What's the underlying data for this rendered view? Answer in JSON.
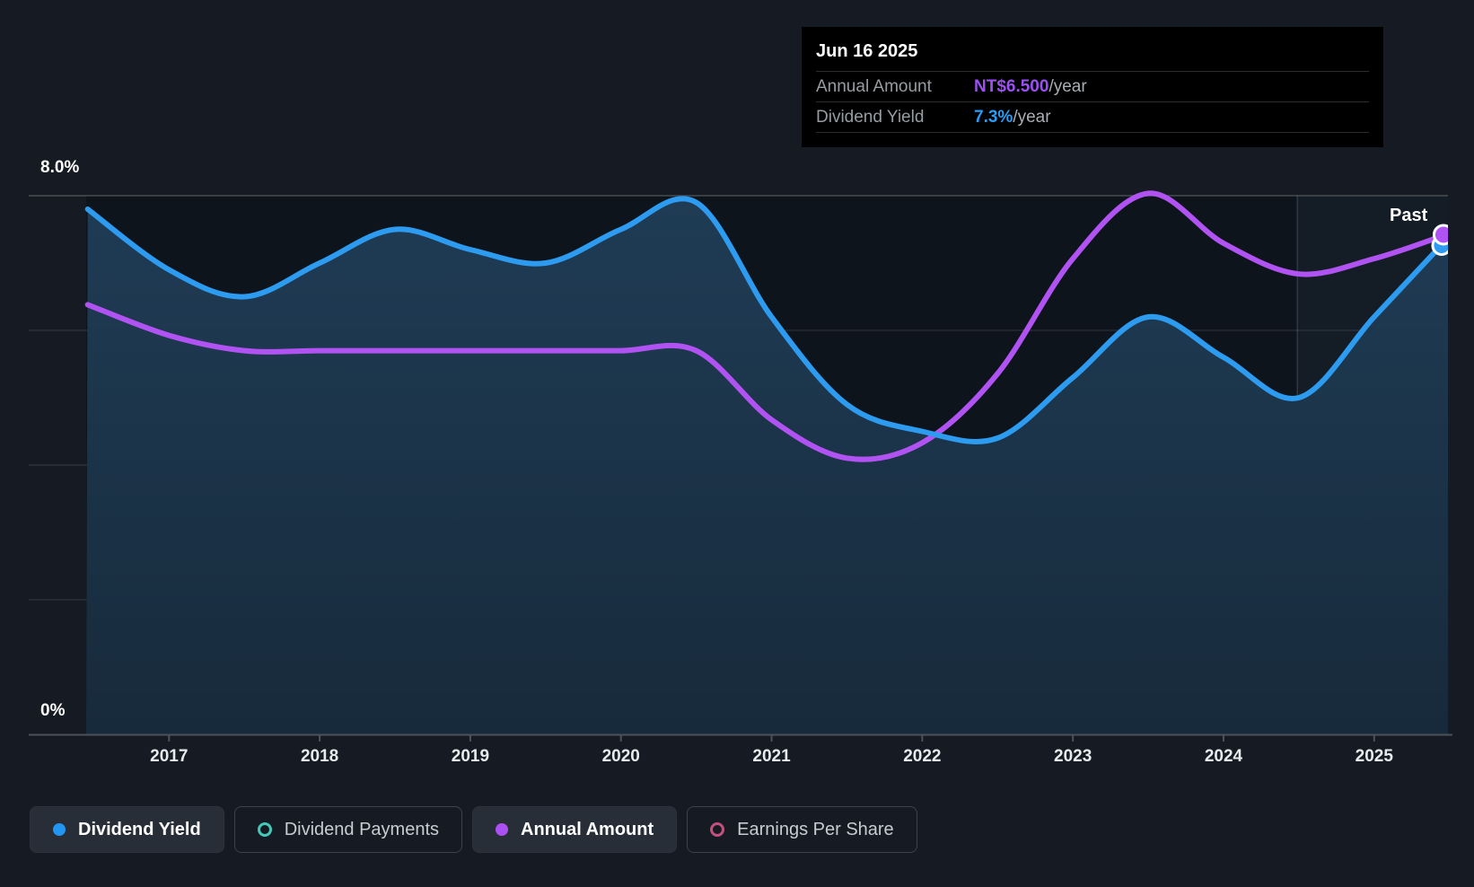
{
  "colors": {
    "page_bg": "#161b23",
    "plot_bg": "#0e141c",
    "area_top": "#1f3c55",
    "area_bottom": "#172a3b",
    "axis": "#4c525a",
    "past_tint": "rgba(121,176,222,0.055)",
    "past_boundary": "rgba(170,205,240,0.18)"
  },
  "tooltip": {
    "date": "Jun 16 2025",
    "rows": [
      {
        "label": "Annual Amount",
        "value": "NT$6.500",
        "suffix": "/year",
        "color": "#9b50f0"
      },
      {
        "label": "Dividend Yield",
        "value": "7.3%",
        "suffix": "/year",
        "color": "#2b9cf5"
      }
    ]
  },
  "y_axis": {
    "top_label": "8.0%",
    "bottom_label": "0%"
  },
  "x_axis": {
    "years": [
      2017,
      2018,
      2019,
      2020,
      2021,
      2022,
      2023,
      2024,
      2025
    ]
  },
  "past_label": "Past",
  "legend": [
    {
      "label": "Dividend Yield",
      "marker": "dot",
      "color": "#2196f3",
      "active": true
    },
    {
      "label": "Dividend Payments",
      "marker": "ring",
      "color": "#45c8b8",
      "active": false
    },
    {
      "label": "Annual Amount",
      "marker": "dot",
      "color": "#ab50f2",
      "active": true
    },
    {
      "label": "Earnings Per Share",
      "marker": "ring",
      "color": "#c2507e",
      "active": false
    }
  ],
  "chart_data": {
    "type": "line",
    "title": "Dividend history: dividend yield and annual dividend amount",
    "x_domain": [
      2016.45,
      2025.49
    ],
    "past_region_start": 2024.49,
    "x": [
      2016.46,
      2017,
      2017.5,
      2018,
      2018.5,
      2019,
      2019.5,
      2020,
      2020.5,
      2021,
      2021.5,
      2022,
      2022.5,
      2023,
      2023.5,
      2024,
      2024.5,
      2025,
      2025.46
    ],
    "series": [
      {
        "name": "Dividend Yield",
        "unit": "%",
        "color": "#2d9bf0",
        "axis_max": 8,
        "values": [
          7.8,
          6.9,
          6.5,
          7.0,
          7.5,
          7.2,
          7.0,
          7.5,
          7.9,
          6.2,
          4.9,
          4.5,
          4.4,
          5.3,
          6.2,
          5.6,
          5.0,
          6.2,
          7.3
        ],
        "has_area_fill": true,
        "end_marker": true
      },
      {
        "name": "Annual Amount",
        "unit": "NT$ per share/year",
        "color": "#b153f2",
        "axis_max": 7.02,
        "values": [
          5.6,
          5.2,
          5.0,
          5.0,
          5.0,
          5.0,
          5.0,
          5.0,
          5.0,
          4.1,
          3.6,
          3.8,
          4.7,
          6.2,
          7.05,
          6.4,
          6.0,
          6.2,
          6.5
        ],
        "has_area_fill": false,
        "end_marker": true
      }
    ],
    "ylim": [
      0,
      8
    ],
    "yticks_shown": [
      "0%",
      "8.0%"
    ],
    "gridlines": [
      2,
      4,
      6,
      8
    ],
    "legend_position": "bottom"
  }
}
